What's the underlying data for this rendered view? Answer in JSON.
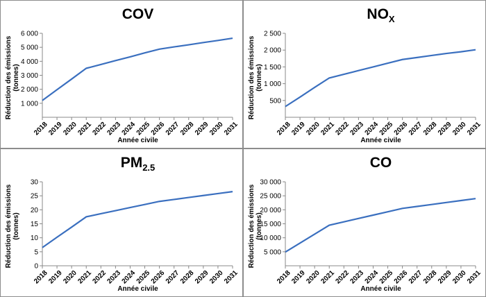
{
  "chart_data": [
    {
      "type": "line",
      "title": "COV",
      "title_sub": "",
      "xlabel": "Année civile",
      "ylabel": "Réduction des émissions (tonnes)",
      "x": [
        2018,
        2019,
        2020,
        2021,
        2022,
        2023,
        2024,
        2025,
        2026,
        2027,
        2028,
        2029,
        2030,
        2031
      ],
      "values": [
        1200,
        1970,
        2730,
        3500,
        3770,
        4050,
        4320,
        4600,
        4870,
        5030,
        5180,
        5340,
        5490,
        5650
      ],
      "ylim": [
        0,
        6000
      ],
      "yticks": [
        1000,
        2000,
        3000,
        4000,
        5000,
        6000
      ],
      "ytick_labels": [
        "1 000",
        "2 000",
        "3 000",
        "4 000",
        "5 000",
        "6 000"
      ]
    },
    {
      "type": "line",
      "title": "NO",
      "title_sub": "X",
      "xlabel": "Année civile",
      "ylabel": "Réduction des émissions (tonnes)",
      "x": [
        2018,
        2019,
        2020,
        2021,
        2022,
        2023,
        2024,
        2025,
        2026,
        2027,
        2028,
        2029,
        2030,
        2031
      ],
      "values": [
        320,
        600,
        890,
        1170,
        1280,
        1390,
        1500,
        1610,
        1720,
        1780,
        1840,
        1900,
        1950,
        2010
      ],
      "ylim": [
        0,
        2500
      ],
      "yticks": [
        500,
        1000,
        1500,
        2000,
        2500
      ],
      "ytick_labels": [
        "500",
        "1 000",
        "1 500",
        "2 000",
        "2 500"
      ]
    },
    {
      "type": "line",
      "title": "PM",
      "title_sub": "2.5",
      "xlabel": "Année civile",
      "ylabel": "Réduction des émissions (tonnes)",
      "x": [
        2018,
        2019,
        2020,
        2021,
        2022,
        2023,
        2024,
        2025,
        2026,
        2027,
        2028,
        2029,
        2030,
        2031
      ],
      "values": [
        6.5,
        10.2,
        13.8,
        17.5,
        18.6,
        19.7,
        20.8,
        21.9,
        23,
        23.7,
        24.4,
        25.1,
        25.8,
        26.5
      ],
      "ylim": [
        0,
        30
      ],
      "yticks": [
        0,
        5,
        10,
        15,
        20,
        25,
        30
      ],
      "ytick_labels": [
        "0",
        "5",
        "10",
        "15",
        "20",
        "25",
        "30"
      ]
    },
    {
      "type": "line",
      "title": "CO",
      "title_sub": "",
      "xlabel": "Année civile",
      "ylabel": "Réduction des émissions (tonnes)",
      "x": [
        2018,
        2019,
        2020,
        2021,
        2022,
        2023,
        2024,
        2025,
        2026,
        2027,
        2028,
        2029,
        2030,
        2031
      ],
      "values": [
        4900,
        8100,
        11300,
        14500,
        15700,
        16900,
        18100,
        19300,
        20500,
        21200,
        21900,
        22600,
        23300,
        24000
      ],
      "ylim": [
        0,
        30000
      ],
      "yticks": [
        5000,
        10000,
        15000,
        20000,
        25000,
        30000
      ],
      "ytick_labels": [
        "5 000",
        "10 000",
        "15 000",
        "20 000",
        "25 000",
        "30 000"
      ]
    }
  ],
  "line_color": "#3a6fbf"
}
